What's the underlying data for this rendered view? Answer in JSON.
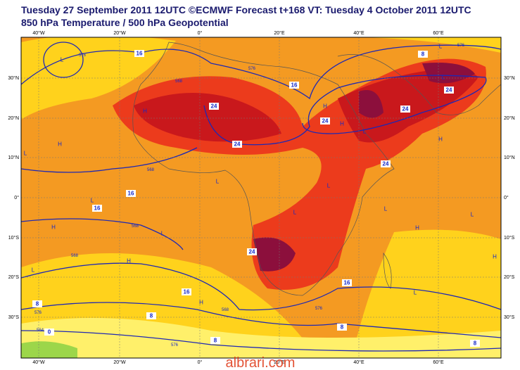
{
  "header": {
    "title_line1": "Tuesday 27 September 2011 12UTC ©ECMWF Forecast t+168 VT: Tuesday 4 October 2011 12UTC",
    "title_line2": "850 hPa Temperature / 500 hPa Geopotential"
  },
  "map": {
    "lon_labels": [
      "40°W",
      "20°W",
      "0°",
      "20°E",
      "40°E",
      "60°E"
    ],
    "lat_labels": [
      "30°N",
      "20°N",
      "10°N",
      "0°",
      "10°S",
      "20°S",
      "30°S"
    ],
    "contour_labels": [
      "16",
      "16",
      "24",
      "24",
      "24",
      "24",
      "24",
      "24",
      "16",
      "16",
      "24",
      "16",
      "16",
      "8",
      "8",
      "8",
      "0",
      "8",
      "8",
      "8"
    ],
    "geopotential_labels": [
      "576",
      "576",
      "576",
      "568",
      "568",
      "568",
      "568",
      "576",
      "568",
      "576",
      "576",
      "564"
    ],
    "centers": [
      "L",
      "L",
      "H",
      "H",
      "L",
      "H",
      "H",
      "L",
      "H",
      "L",
      "L",
      "L",
      "L",
      "L",
      "L",
      "H",
      "H",
      "L",
      "H",
      "L",
      "H",
      "L",
      "H",
      "L"
    ]
  },
  "watermark": "albrari.com"
}
